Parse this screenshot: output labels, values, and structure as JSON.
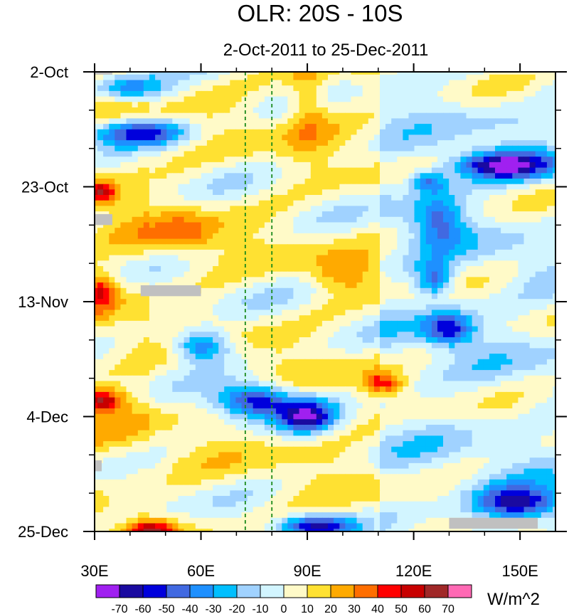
{
  "chart_data": {
    "type": "heatmap",
    "title": "OLR: 20S - 10S",
    "subtitle": "2-Oct-2011 to 25-Dec-2011",
    "xlabel": "",
    "ylabel": "",
    "x_range": [
      30,
      160
    ],
    "x_ticks": [
      {
        "value": 30,
        "label": "30E"
      },
      {
        "value": 60,
        "label": "60E"
      },
      {
        "value": 90,
        "label": "90E"
      },
      {
        "value": 120,
        "label": "120E"
      },
      {
        "value": 150,
        "label": "150E"
      }
    ],
    "y_ticks_days": [
      {
        "value": 0,
        "label": "2-Oct"
      },
      {
        "value": 21,
        "label": "23-Oct"
      },
      {
        "value": 42,
        "label": "13-Nov"
      },
      {
        "value": 63,
        "label": "4-Dec"
      },
      {
        "value": 84,
        "label": "25-Dec"
      }
    ],
    "y_range_days": [
      0,
      84
    ],
    "reference_lines_lon": [
      72.5,
      80
    ],
    "colorbar": {
      "levels": [
        -70,
        -60,
        -50,
        -40,
        -30,
        -20,
        -10,
        0,
        10,
        20,
        30,
        40,
        50,
        60,
        70
      ],
      "labels": [
        "-70",
        "-60",
        "-50",
        "-40",
        "-30",
        "-20",
        "-10",
        "0",
        "10",
        "20",
        "30",
        "40",
        "50",
        "60",
        "70"
      ],
      "colors": [
        "#a020f0",
        "#1a0aa0",
        "#0000dc",
        "#4169e1",
        "#1e90ff",
        "#00bfff",
        "#a0d2ff",
        "#d2f5ff",
        "#fffac8",
        "#ffe132",
        "#ffaa00",
        "#ff6e00",
        "#ff0000",
        "#c80000",
        "#a02828",
        "#ff69b4"
      ],
      "units": "W/m^2"
    },
    "features": [
      {
        "lon": 40,
        "day": 3,
        "value": -45,
        "rx": 10,
        "ry": 2.5
      },
      {
        "lon": 42,
        "day": 11,
        "value": -60,
        "rx": 14,
        "ry": 2.5
      },
      {
        "lon": 145,
        "day": 17,
        "value": -70,
        "rx": 14,
        "ry": 2.5
      },
      {
        "lon": 124,
        "day": 20,
        "value": -40,
        "rx": 5,
        "ry": 2
      },
      {
        "lon": 127,
        "day": 27,
        "value": -40,
        "rx": 7,
        "ry": 5
      },
      {
        "lon": 126,
        "day": 38,
        "value": -45,
        "rx": 5,
        "ry": 3
      },
      {
        "lon": 130,
        "day": 47,
        "value": -55,
        "rx": 7,
        "ry": 3
      },
      {
        "lon": 60,
        "day": 50,
        "value": -55,
        "rx": 8,
        "ry": 3
      },
      {
        "lon": 75,
        "day": 60,
        "value": -65,
        "rx": 10,
        "ry": 3
      },
      {
        "lon": 90,
        "day": 63,
        "value": -60,
        "rx": 8,
        "ry": 3
      },
      {
        "lon": 150,
        "day": 79,
        "value": -65,
        "rx": 12,
        "ry": 3
      },
      {
        "lon": 92,
        "day": 83,
        "value": -60,
        "rx": 10,
        "ry": 2
      },
      {
        "lon": 32,
        "day": 22,
        "value": 45,
        "rx": 4,
        "ry": 2
      },
      {
        "lon": 32,
        "day": 40,
        "value": 40,
        "rx": 4,
        "ry": 3
      },
      {
        "lon": 32,
        "day": 60,
        "value": 55,
        "rx": 6,
        "ry": 2
      },
      {
        "lon": 46,
        "day": 84,
        "value": 50,
        "rx": 6,
        "ry": 2
      },
      {
        "lon": 100,
        "day": 37,
        "value": 20,
        "rx": 8,
        "ry": 3
      },
      {
        "lon": 112,
        "day": 57,
        "value": 40,
        "rx": 5,
        "ry": 2
      },
      {
        "lon": 90,
        "day": 5,
        "value": 25,
        "rx": 6,
        "ry": 8
      },
      {
        "lon": 55,
        "day": 30,
        "value": 25,
        "rx": 10,
        "ry": 4
      }
    ],
    "missing_data": [
      {
        "lon0": 30,
        "lon1": 35,
        "day0": 0,
        "day1": 0.5
      },
      {
        "lon0": 30,
        "lon1": 35,
        "day0": 26,
        "day1": 28
      },
      {
        "lon0": 43,
        "lon1": 60,
        "day0": 39,
        "day1": 41
      },
      {
        "lon0": 30,
        "lon1": 32,
        "day0": 71,
        "day1": 73
      },
      {
        "lon0": 130,
        "lon1": 155,
        "day0": 81.5,
        "day1": 83.5
      }
    ]
  }
}
